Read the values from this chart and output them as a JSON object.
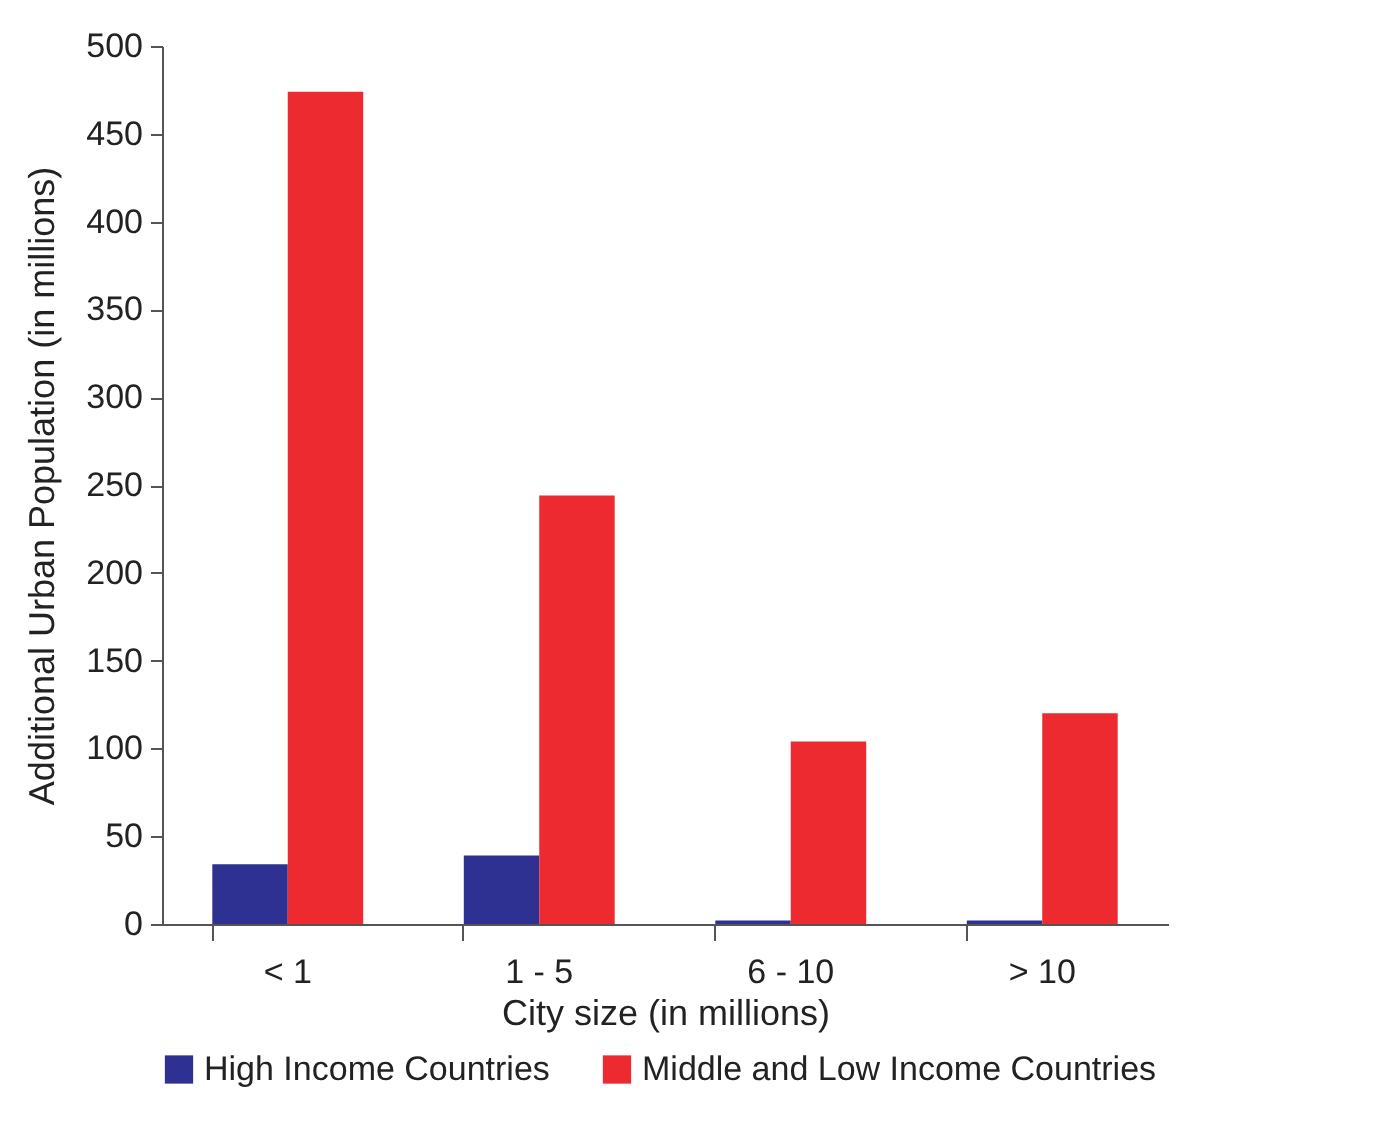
{
  "chart_data": {
    "type": "bar",
    "xlabel": "City size (in millions)",
    "ylabel": "Additional Urban Population (in millions)",
    "categories": [
      "< 1",
      "1 - 5",
      "6 - 10",
      "> 10"
    ],
    "series": [
      {
        "name": "High Income Countries",
        "color": "#2e3192",
        "values": [
          34,
          39,
          2,
          2
        ]
      },
      {
        "name": "Middle and Low Income Countries",
        "color": "#ed2a2f",
        "values": [
          474,
          244,
          104,
          120
        ]
      }
    ],
    "ylim": [
      0,
      500
    ],
    "yticks": [
      0,
      50,
      100,
      150,
      200,
      250,
      300,
      350,
      400,
      450,
      500
    ],
    "grid": false,
    "legend": "bottom"
  }
}
